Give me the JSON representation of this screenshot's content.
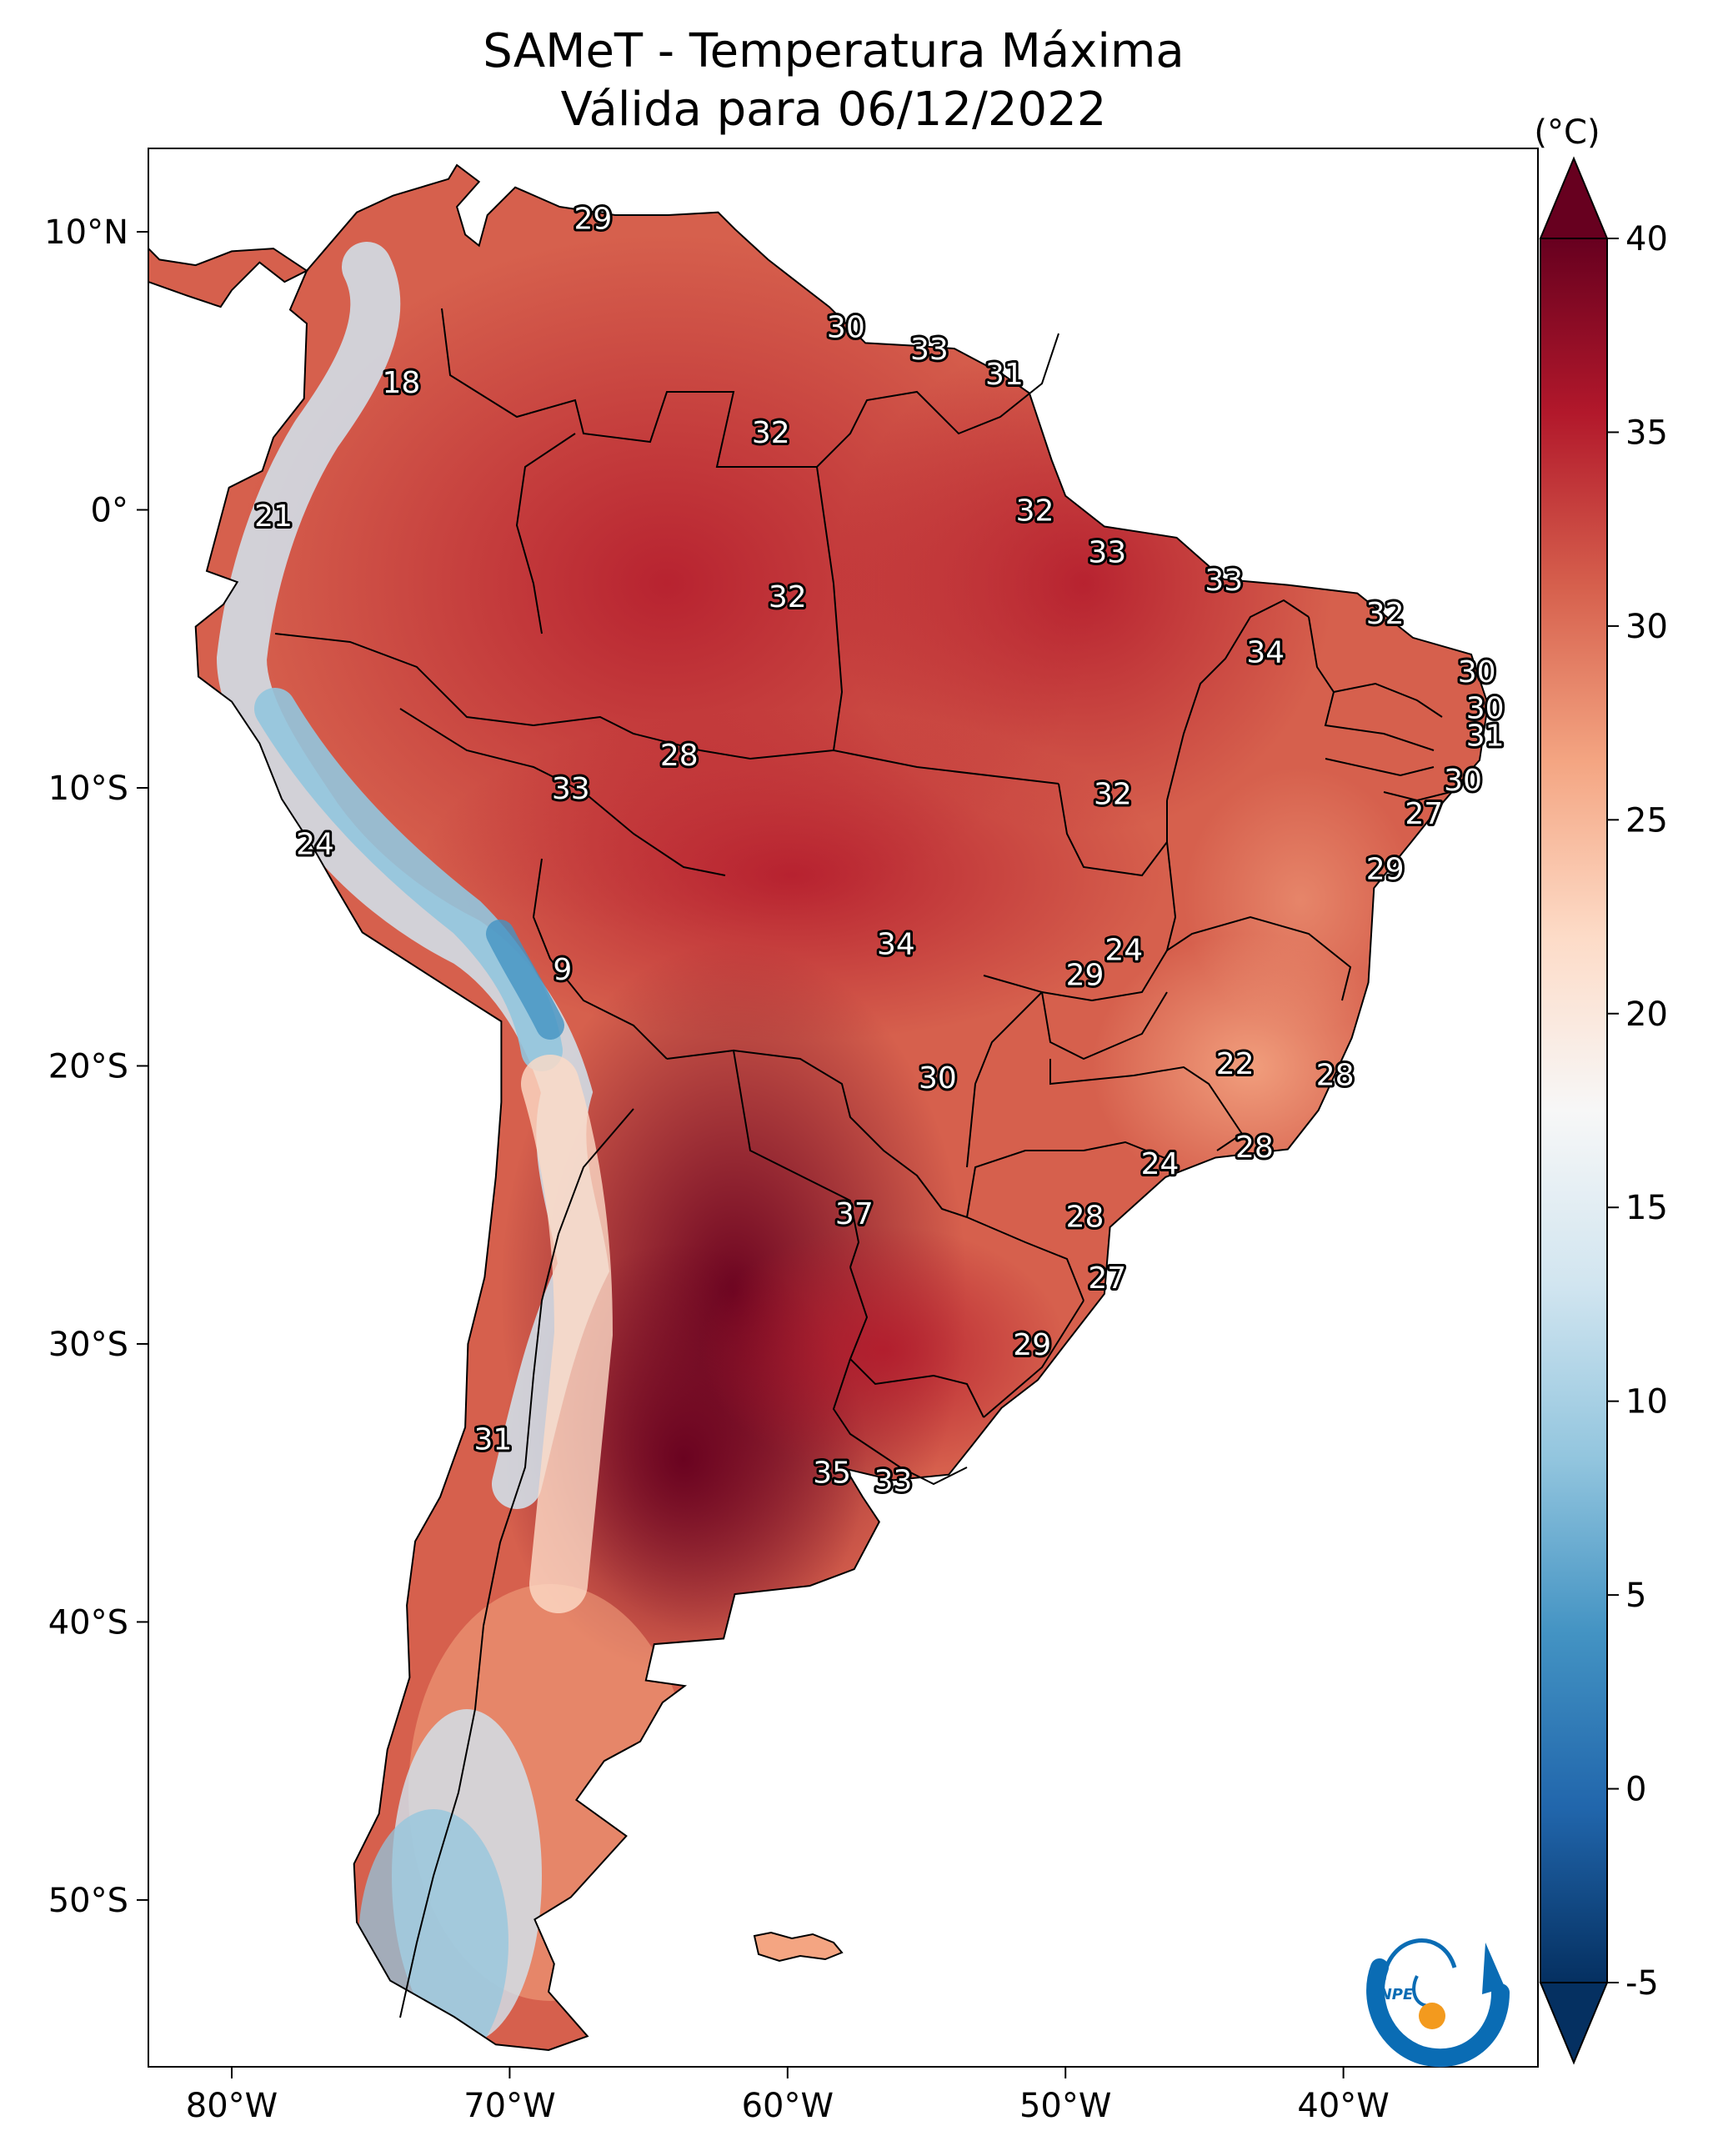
{
  "title": "SAMeT - Temperatura Máxima",
  "subtitle": "Válida para 06/12/2022",
  "unit": "(°C)",
  "lon_ticks": [
    {
      "lon": -80,
      "label": "80°W"
    },
    {
      "lon": -70,
      "label": "70°W"
    },
    {
      "lon": -60,
      "label": "60°W"
    },
    {
      "lon": -50,
      "label": "50°W"
    },
    {
      "lon": -40,
      "label": "40°W"
    }
  ],
  "lat_ticks": [
    {
      "lat": 10,
      "label": "10°N"
    },
    {
      "lat": 0,
      "label": "0°"
    },
    {
      "lat": -10,
      "label": "10°S"
    },
    {
      "lat": -20,
      "label": "20°S"
    },
    {
      "lat": -30,
      "label": "30°S"
    },
    {
      "lat": -40,
      "label": "40°S"
    },
    {
      "lat": -50,
      "label": "50°S"
    }
  ],
  "colorbar": {
    "min": -5,
    "max": 40,
    "ticks": [
      {
        "value": 40,
        "label": "40"
      },
      {
        "value": 35,
        "label": "35"
      },
      {
        "value": 30,
        "label": "30"
      },
      {
        "value": 25,
        "label": "25"
      },
      {
        "value": 20,
        "label": "20"
      },
      {
        "value": 15,
        "label": "15"
      },
      {
        "value": 10,
        "label": "10"
      },
      {
        "value": 5,
        "label": "5"
      },
      {
        "value": 0,
        "label": "0"
      },
      {
        "value": -5,
        "label": "-5"
      }
    ],
    "colors": [
      "#053061",
      "#2166ac",
      "#4393c3",
      "#92c5de",
      "#d1e5f0",
      "#f7f7f7",
      "#fddbc7",
      "#f4a582",
      "#d6604d",
      "#b2182b",
      "#67001f"
    ]
  },
  "logo": {
    "text": "INPE",
    "color_blue": "#0a6cb4",
    "color_orange": "#f39a1e"
  },
  "city_labels": [
    {
      "value": "29",
      "lon": -67,
      "lat": 10.5
    },
    {
      "value": "30",
      "lon": -57.9,
      "lat": 6.6
    },
    {
      "value": "33",
      "lon": -54.9,
      "lat": 5.8
    },
    {
      "value": "31",
      "lon": -52.2,
      "lat": 4.9
    },
    {
      "value": "18",
      "lon": -73.9,
      "lat": 4.6
    },
    {
      "value": "32",
      "lon": -60.6,
      "lat": 2.8
    },
    {
      "value": "21",
      "lon": -78.5,
      "lat": -0.2
    },
    {
      "value": "32",
      "lon": -51.1,
      "lat": 0.0
    },
    {
      "value": "33",
      "lon": -48.5,
      "lat": -1.5
    },
    {
      "value": "32",
      "lon": -60.0,
      "lat": -3.1
    },
    {
      "value": "33",
      "lon": -44.3,
      "lat": -2.5
    },
    {
      "value": "32",
      "lon": -38.5,
      "lat": -3.7
    },
    {
      "value": "34",
      "lon": -42.8,
      "lat": -5.1
    },
    {
      "value": "30",
      "lon": -35.2,
      "lat": -5.8
    },
    {
      "value": "30",
      "lon": -34.9,
      "lat": -7.1
    },
    {
      "value": "31",
      "lon": -34.9,
      "lat": -8.1
    },
    {
      "value": "28",
      "lon": -63.9,
      "lat": -8.8
    },
    {
      "value": "33",
      "lon": -67.8,
      "lat": -10.0
    },
    {
      "value": "32",
      "lon": -48.3,
      "lat": -10.2
    },
    {
      "value": "30",
      "lon": -35.7,
      "lat": -9.7
    },
    {
      "value": "27",
      "lon": -37.1,
      "lat": -10.9
    },
    {
      "value": "24",
      "lon": -77.0,
      "lat": -12.0
    },
    {
      "value": "29",
      "lon": -38.5,
      "lat": -12.9
    },
    {
      "value": "34",
      "lon": -56.1,
      "lat": -15.6
    },
    {
      "value": "24",
      "lon": -47.9,
      "lat": -15.8
    },
    {
      "value": "29",
      "lon": -49.3,
      "lat": -16.7
    },
    {
      "value": "9",
      "lon": -68.1,
      "lat": -16.5
    },
    {
      "value": "22",
      "lon": -43.9,
      "lat": -19.9
    },
    {
      "value": "28",
      "lon": -40.3,
      "lat": -20.3
    },
    {
      "value": "30",
      "lon": -54.6,
      "lat": -20.4
    },
    {
      "value": "28",
      "lon": -43.2,
      "lat": -22.9
    },
    {
      "value": "24",
      "lon": -46.6,
      "lat": -23.5
    },
    {
      "value": "37",
      "lon": -57.6,
      "lat": -25.3
    },
    {
      "value": "28",
      "lon": -49.3,
      "lat": -25.4
    },
    {
      "value": "27",
      "lon": -48.5,
      "lat": -27.6
    },
    {
      "value": "29",
      "lon": -51.2,
      "lat": -30.0
    },
    {
      "value": "31",
      "lon": -70.6,
      "lat": -33.4
    },
    {
      "value": "35",
      "lon": -58.4,
      "lat": -34.6
    },
    {
      "value": "33",
      "lon": -56.2,
      "lat": -34.9
    }
  ]
}
